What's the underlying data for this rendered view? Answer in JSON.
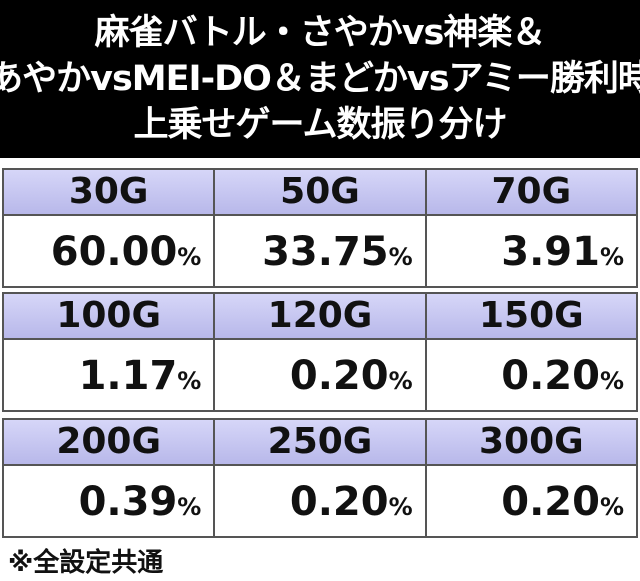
{
  "title": {
    "lines": [
      "麻雀バトル・さやかvs神楽＆",
      "あやかvsMEI-DO＆まどかvsアミー勝利時",
      "上乗せゲーム数振り分け"
    ]
  },
  "blocks": [
    {
      "headers": [
        "30G",
        "50G",
        "70G"
      ],
      "values": [
        "60.00%",
        "33.75%",
        "3.91%"
      ]
    },
    {
      "headers": [
        "100G",
        "120G",
        "150G"
      ],
      "values": [
        "1.17%",
        "0.20%",
        "0.20%"
      ]
    },
    {
      "headers": [
        "200G",
        "250G",
        "300G"
      ],
      "values": [
        "0.39%",
        "0.20%",
        "0.20%"
      ]
    }
  ],
  "footnote": "※全設定共通"
}
